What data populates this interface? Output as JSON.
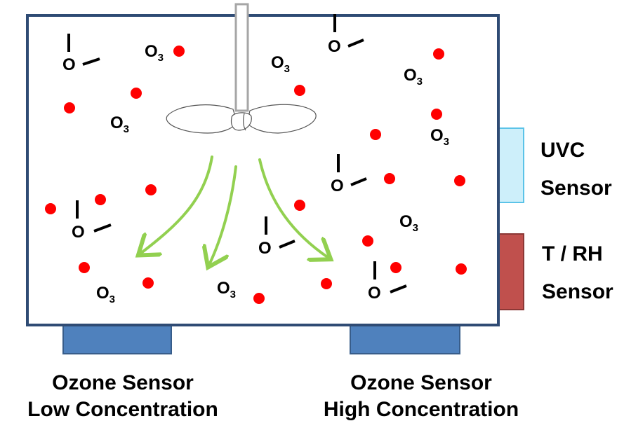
{
  "molecule": {
    "ozone_main": "O",
    "ozone_sub": "3",
    "hydroxyl_atom": "O"
  },
  "sensors": {
    "uvc": {
      "line1": "UVC",
      "line2": "Sensor",
      "color": "#CDEFFA",
      "stroke": "#5BC3E8"
    },
    "trh": {
      "line1": "T / RH",
      "line2": "Sensor",
      "color": "#C0504D",
      "stroke": "#8C3836"
    },
    "ozone_low": {
      "line1": "Ozone Sensor",
      "line2": "Low Concentration",
      "color": "#4F81BD",
      "stroke": "#385D8A"
    },
    "ozone_high": {
      "line1": "Ozone Sensor",
      "line2": "High Concentration",
      "color": "#4F81BD",
      "stroke": "#385D8A"
    }
  },
  "colors": {
    "chamber_border": "#2F4B74",
    "particle": "#FF0000",
    "airflow_arrow": "#92D050",
    "shaft": "#A6A6A6"
  }
}
